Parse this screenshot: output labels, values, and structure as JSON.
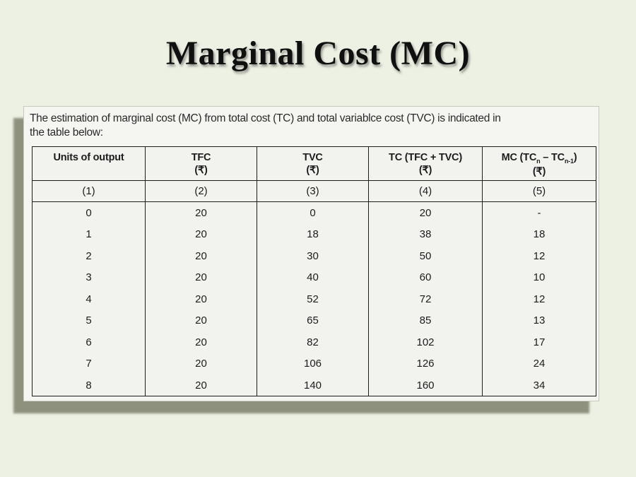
{
  "title": "Marginal Cost (MC)",
  "intro": {
    "line1": "The estimation of marginal cost (MC) from total cost (TC) and total variablce cost (TVC) is indicated in",
    "line2": "the table below:"
  },
  "colors": {
    "slide_background": "#edf1e3",
    "box_background": "#f5f5f2",
    "box_shadow": "#7d806b",
    "table_border": "#1c1c1c",
    "text": "#1c1c1c"
  },
  "table": {
    "headers": [
      {
        "segments": [
          {
            "text": "Units of output"
          }
        ],
        "unit": ""
      },
      {
        "segments": [
          {
            "text": "TFC"
          }
        ],
        "unit": "(₹)"
      },
      {
        "segments": [
          {
            "text": "TVC"
          }
        ],
        "unit": "(₹)"
      },
      {
        "segments": [
          {
            "text": "TC (TFC + TVC)"
          }
        ],
        "unit": "(₹)"
      },
      {
        "segments": [
          {
            "text": "MC (TC"
          },
          {
            "text": "n",
            "sub": true
          },
          {
            "text": " – TC",
            "pre": " "
          },
          {
            "text": "n-1",
            "sub": true
          },
          {
            "text": ")"
          }
        ],
        "unit": "(₹)"
      }
    ],
    "column_numbers": [
      "(1)",
      "(2)",
      "(3)",
      "(4)",
      "(5)"
    ],
    "rows": [
      [
        "0",
        "20",
        "0",
        "20",
        "-"
      ],
      [
        "1",
        "20",
        "18",
        "38",
        "18"
      ],
      [
        "2",
        "20",
        "30",
        "50",
        "12"
      ],
      [
        "3",
        "20",
        "40",
        "60",
        "10"
      ],
      [
        "4",
        "20",
        "52",
        "72",
        "12"
      ],
      [
        "5",
        "20",
        "65",
        "85",
        "13"
      ],
      [
        "6",
        "20",
        "82",
        "102",
        "17"
      ],
      [
        "7",
        "20",
        "106",
        "126",
        "24"
      ],
      [
        "8",
        "20",
        "140",
        "160",
        "34"
      ]
    ]
  }
}
